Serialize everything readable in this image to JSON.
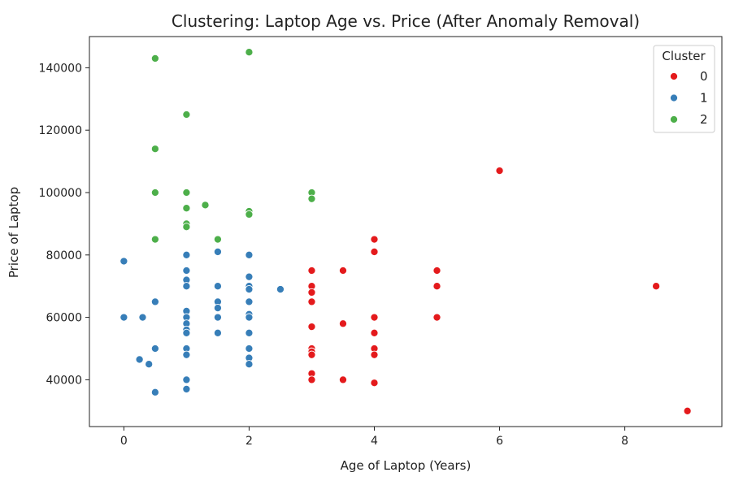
{
  "chart_data": {
    "type": "scatter",
    "title": "Clustering: Laptop Age vs. Price (After Anomaly Removal)",
    "xlabel": "Age of Laptop (Years)",
    "ylabel": "Price of Laptop",
    "xlim": [
      -0.55,
      9.55
    ],
    "ylim": [
      25000,
      150000
    ],
    "xticks": [
      0,
      2,
      4,
      6,
      8
    ],
    "yticks": [
      40000,
      60000,
      80000,
      100000,
      120000,
      140000
    ],
    "grid": false,
    "legend": {
      "title": "Cluster",
      "placement": "top-right"
    },
    "series": [
      {
        "name": "0",
        "color": "#e41a1c",
        "points": [
          [
            3,
            75000
          ],
          [
            3,
            70000
          ],
          [
            3,
            68000
          ],
          [
            3,
            65000
          ],
          [
            3,
            57000
          ],
          [
            3,
            50000
          ],
          [
            3,
            49000
          ],
          [
            3,
            48000
          ],
          [
            3,
            42000
          ],
          [
            3,
            40000
          ],
          [
            3.5,
            75000
          ],
          [
            3.5,
            58000
          ],
          [
            3.5,
            40000
          ],
          [
            4,
            85000
          ],
          [
            4,
            81000
          ],
          [
            4,
            60000
          ],
          [
            4,
            55000
          ],
          [
            4,
            50000
          ],
          [
            4,
            48000
          ],
          [
            4,
            39000
          ],
          [
            5,
            75000
          ],
          [
            5,
            70000
          ],
          [
            5,
            60000
          ],
          [
            6,
            107000
          ],
          [
            8.5,
            70000
          ],
          [
            9,
            30000
          ]
        ]
      },
      {
        "name": "1",
        "color": "#377eb8",
        "points": [
          [
            0,
            78000
          ],
          [
            0,
            60000
          ],
          [
            0.25,
            46500
          ],
          [
            0.3,
            60000
          ],
          [
            0.4,
            45000
          ],
          [
            0.5,
            65000
          ],
          [
            0.5,
            50000
          ],
          [
            0.5,
            36000
          ],
          [
            1,
            80000
          ],
          [
            1,
            75000
          ],
          [
            1,
            72000
          ],
          [
            1,
            70000
          ],
          [
            1,
            62000
          ],
          [
            1,
            60000
          ],
          [
            1,
            58000
          ],
          [
            1,
            56000
          ],
          [
            1,
            55000
          ],
          [
            1,
            50000
          ],
          [
            1,
            48000
          ],
          [
            1,
            40000
          ],
          [
            1,
            37000
          ],
          [
            1.5,
            81000
          ],
          [
            1.5,
            70000
          ],
          [
            1.5,
            65000
          ],
          [
            1.5,
            63000
          ],
          [
            1.5,
            60000
          ],
          [
            1.5,
            55000
          ],
          [
            2,
            80000
          ],
          [
            2,
            73000
          ],
          [
            2,
            70000
          ],
          [
            2,
            69000
          ],
          [
            2,
            65000
          ],
          [
            2,
            61000
          ],
          [
            2,
            60000
          ],
          [
            2,
            55000
          ],
          [
            2,
            50000
          ],
          [
            2,
            47000
          ],
          [
            2,
            45000
          ],
          [
            2.5,
            69000
          ]
        ]
      },
      {
        "name": "2",
        "color": "#4daf4a",
        "points": [
          [
            0.5,
            143000
          ],
          [
            0.5,
            114000
          ],
          [
            0.5,
            100000
          ],
          [
            0.5,
            85000
          ],
          [
            1,
            125000
          ],
          [
            1,
            100000
          ],
          [
            1,
            95000
          ],
          [
            1,
            90000
          ],
          [
            1,
            89000
          ],
          [
            1.3,
            96000
          ],
          [
            1.5,
            85000
          ],
          [
            2,
            145000
          ],
          [
            2,
            94000
          ],
          [
            2,
            93000
          ],
          [
            3,
            100000
          ],
          [
            3,
            98000
          ]
        ]
      }
    ]
  }
}
